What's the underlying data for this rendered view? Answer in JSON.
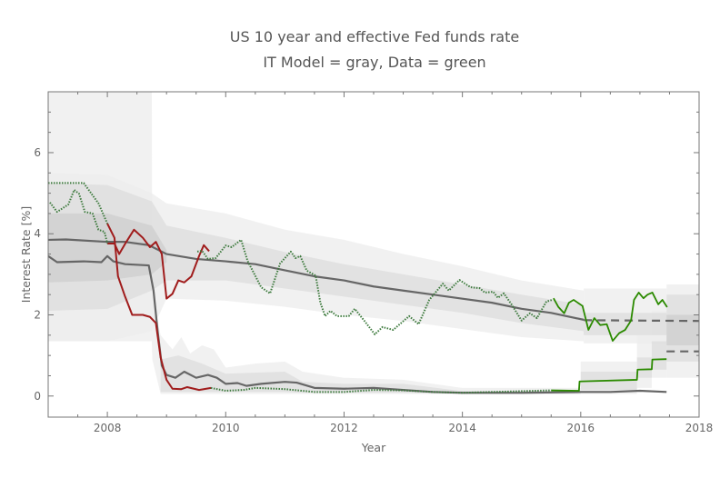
{
  "chart_data": {
    "type": "line",
    "title": "US 10 year and effective Fed funds rate",
    "subtitle": "IT Model = gray, Data = green",
    "xlabel": "Year",
    "ylabel": "Interest Rate [%]",
    "xlim": [
      2007,
      2018
    ],
    "ylim": [
      -0.52,
      7.5
    ],
    "xticks": [
      2008,
      2010,
      2012,
      2014,
      2016,
      2018
    ],
    "yticks": [
      0,
      2,
      4,
      6
    ],
    "grid": false,
    "colors": {
      "band_outer": "#ececec",
      "band_mid": "#dcdcdc",
      "band_inner": "#cdcdcd",
      "model": "#666666",
      "red": "#a01c1c",
      "green_dotted": "#3d7a3d",
      "green": "#2b8a00"
    },
    "bands": [
      {
        "level": "outer",
        "points": [
          [
            2007,
            1.35,
            5.5
          ],
          [
            2008,
            1.35,
            5.45
          ],
          [
            2008.75,
            1.6,
            5.0
          ],
          [
            2009,
            2.4,
            4.75
          ],
          [
            2010,
            2.35,
            4.5
          ],
          [
            2011,
            2.2,
            4.1
          ],
          [
            2012,
            2.0,
            3.85
          ],
          [
            2013,
            1.85,
            3.5
          ],
          [
            2014,
            1.65,
            3.2
          ],
          [
            2015,
            1.45,
            2.85
          ],
          [
            2016.05,
            1.35,
            2.6
          ]
        ]
      },
      {
        "level": "outer",
        "points": [
          [
            2007,
            1.35,
            8
          ],
          [
            2008.75,
            1.35,
            8
          ],
          [
            2008.76,
            0.9,
            2.5
          ],
          [
            2008.9,
            0.05,
            1.5
          ],
          [
            2009.1,
            0.05,
            1.15
          ],
          [
            2009.25,
            0.05,
            1.45
          ],
          [
            2009.4,
            0.05,
            1.05
          ],
          [
            2009.6,
            0.05,
            1.25
          ],
          [
            2009.8,
            0.05,
            1.15
          ],
          [
            2010,
            0.05,
            0.7
          ],
          [
            2010.5,
            0.05,
            0.8
          ],
          [
            2011,
            0.05,
            0.85
          ],
          [
            2011.3,
            0.05,
            0.6
          ],
          [
            2012,
            0.05,
            0.45
          ],
          [
            2013,
            0.05,
            0.4
          ],
          [
            2014,
            0.05,
            0.2
          ],
          [
            2016,
            0.05,
            0.2
          ]
        ]
      },
      {
        "level": "mid",
        "points": [
          [
            2007,
            2.1,
            5.25
          ],
          [
            2008,
            2.15,
            5.2
          ],
          [
            2008.75,
            2.6,
            4.8
          ],
          [
            2009,
            2.85,
            4.2
          ],
          [
            2010,
            2.85,
            3.9
          ],
          [
            2011,
            2.65,
            3.55
          ],
          [
            2012,
            2.45,
            3.25
          ],
          [
            2013,
            2.25,
            3.0
          ],
          [
            2014,
            2.05,
            2.75
          ],
          [
            2015,
            1.8,
            2.5
          ],
          [
            2016.05,
            1.6,
            2.25
          ]
        ]
      },
      {
        "level": "mid",
        "points": [
          [
            2008.9,
            0.1,
            0.9
          ],
          [
            2009.2,
            0.1,
            1.0
          ],
          [
            2009.6,
            0.1,
            0.8
          ],
          [
            2010,
            0.1,
            0.55
          ],
          [
            2011,
            0.1,
            0.6
          ],
          [
            2011.3,
            0.08,
            0.35
          ],
          [
            2012,
            0.08,
            0.3
          ],
          [
            2013,
            0.08,
            0.3
          ],
          [
            2014,
            0.05,
            0.12
          ],
          [
            2016,
            0.05,
            0.12
          ]
        ]
      },
      {
        "level": "inner",
        "points": [
          [
            2007,
            2.8,
            4.5
          ],
          [
            2008,
            2.85,
            4.5
          ],
          [
            2008.75,
            3.0,
            4.2
          ],
          [
            2009,
            3.3,
            3.6
          ]
        ]
      }
    ],
    "forecast_boxes": [
      {
        "level": "outer",
        "x": [
          2016.05,
          2017.45
        ],
        "range": [
          1.3,
          2.65
        ]
      },
      {
        "level": "mid",
        "x": [
          2016.05,
          2017.45
        ],
        "range": [
          1.5,
          2.05
        ]
      },
      {
        "level": "outer",
        "x": [
          2017.45,
          2018
        ],
        "range": [
          0.45,
          2.75
        ]
      },
      {
        "level": "mid",
        "x": [
          2017.45,
          2018
        ],
        "range": [
          0.85,
          2.5
        ]
      },
      {
        "level": "inner",
        "x": [
          2017.45,
          2018
        ],
        "range": [
          1.25,
          2.0
        ]
      },
      {
        "level": "outer",
        "x": [
          2016.0,
          2016.95
        ],
        "range": [
          0.05,
          0.85
        ]
      },
      {
        "level": "mid",
        "x": [
          2016.0,
          2016.95
        ],
        "range": [
          0.15,
          0.6
        ]
      },
      {
        "level": "outer",
        "x": [
          2016.95,
          2017.2
        ],
        "range": [
          0.2,
          1.5
        ]
      },
      {
        "level": "mid",
        "x": [
          2016.95,
          2017.2
        ],
        "range": [
          0.45,
          0.95
        ]
      },
      {
        "level": "outer",
        "x": [
          2017.2,
          2017.45
        ],
        "range": [
          0.45,
          2.1
        ]
      },
      {
        "level": "mid",
        "x": [
          2017.2,
          2017.45
        ],
        "range": [
          0.65,
          1.35
        ]
      }
    ],
    "series": [
      {
        "style": "model",
        "points": [
          [
            2007,
            3.85
          ],
          [
            2007.3,
            3.86
          ],
          [
            2008,
            3.8
          ],
          [
            2008.3,
            3.8
          ],
          [
            2008.7,
            3.72
          ],
          [
            2009,
            3.5
          ],
          [
            2009.5,
            3.38
          ],
          [
            2010,
            3.32
          ],
          [
            2010.5,
            3.25
          ],
          [
            2011,
            3.1
          ],
          [
            2011.5,
            2.95
          ],
          [
            2012,
            2.85
          ],
          [
            2012.5,
            2.7
          ],
          [
            2013,
            2.6
          ],
          [
            2013.5,
            2.5
          ],
          [
            2014,
            2.4
          ],
          [
            2014.5,
            2.3
          ],
          [
            2015,
            2.15
          ],
          [
            2015.5,
            2.05
          ],
          [
            2016.05,
            1.88
          ]
        ]
      },
      {
        "style": "model-dashed",
        "points": [
          [
            2016.05,
            1.87
          ],
          [
            2018,
            1.85
          ]
        ]
      },
      {
        "style": "model",
        "points": [
          [
            2007,
            3.45
          ],
          [
            2007.15,
            3.3
          ],
          [
            2007.6,
            3.32
          ],
          [
            2007.9,
            3.3
          ],
          [
            2008,
            3.45
          ],
          [
            2008.1,
            3.32
          ],
          [
            2008.3,
            3.25
          ],
          [
            2008.7,
            3.22
          ],
          [
            2008.78,
            2.6
          ],
          [
            2008.85,
            1.6
          ],
          [
            2008.92,
            0.75
          ],
          [
            2009,
            0.52
          ],
          [
            2009.15,
            0.45
          ],
          [
            2009.3,
            0.6
          ],
          [
            2009.5,
            0.45
          ],
          [
            2009.7,
            0.52
          ],
          [
            2009.85,
            0.45
          ],
          [
            2010,
            0.3
          ],
          [
            2010.2,
            0.32
          ],
          [
            2010.35,
            0.25
          ],
          [
            2010.6,
            0.3
          ],
          [
            2011,
            0.35
          ],
          [
            2011.2,
            0.33
          ],
          [
            2011.5,
            0.2
          ],
          [
            2012,
            0.18
          ],
          [
            2012.5,
            0.2
          ],
          [
            2013,
            0.15
          ],
          [
            2013.5,
            0.1
          ],
          [
            2014,
            0.08
          ],
          [
            2015,
            0.08
          ],
          [
            2016,
            0.1
          ],
          [
            2016.5,
            0.1
          ],
          [
            2017,
            0.13
          ],
          [
            2017.45,
            0.1
          ]
        ]
      },
      {
        "style": "model-dashed",
        "points": [
          [
            2017.45,
            1.1
          ],
          [
            2018,
            1.1
          ]
        ]
      },
      {
        "style": "red",
        "points": [
          [
            2008,
            3.76
          ],
          [
            2008.12,
            3.76
          ],
          [
            2008.2,
            3.5
          ],
          [
            2008.32,
            3.8
          ],
          [
            2008.45,
            4.1
          ],
          [
            2008.6,
            3.9
          ],
          [
            2008.72,
            3.67
          ],
          [
            2008.82,
            3.8
          ],
          [
            2008.92,
            3.5
          ],
          [
            2009.0,
            2.4
          ],
          [
            2009.1,
            2.52
          ],
          [
            2009.2,
            2.85
          ],
          [
            2009.3,
            2.8
          ],
          [
            2009.42,
            2.95
          ],
          [
            2009.55,
            3.45
          ],
          [
            2009.63,
            3.72
          ],
          [
            2009.72,
            3.57
          ]
        ]
      },
      {
        "style": "red",
        "points": [
          [
            2008,
            4.25
          ],
          [
            2008.12,
            3.9
          ],
          [
            2008.18,
            2.95
          ],
          [
            2008.3,
            2.45
          ],
          [
            2008.42,
            2.0
          ],
          [
            2008.6,
            2.0
          ],
          [
            2008.72,
            1.95
          ],
          [
            2008.82,
            1.8
          ],
          [
            2008.9,
            0.95
          ],
          [
            2009.0,
            0.4
          ],
          [
            2009.1,
            0.18
          ],
          [
            2009.25,
            0.17
          ],
          [
            2009.35,
            0.22
          ],
          [
            2009.55,
            0.15
          ],
          [
            2009.75,
            0.2
          ]
        ]
      },
      {
        "style": "green-dotted",
        "points": [
          [
            2007.03,
            4.77
          ],
          [
            2007.15,
            4.54
          ],
          [
            2007.34,
            4.72
          ],
          [
            2007.44,
            5.08
          ],
          [
            2007.52,
            4.99
          ],
          [
            2007.62,
            4.54
          ],
          [
            2007.75,
            4.5
          ],
          [
            2007.85,
            4.1
          ],
          [
            2007.95,
            4.05
          ],
          [
            2008,
            3.76
          ]
        ]
      },
      {
        "style": "green-dotted",
        "points": [
          [
            2007,
            5.25
          ],
          [
            2007.6,
            5.25
          ],
          [
            2007.75,
            4.95
          ],
          [
            2007.85,
            4.75
          ],
          [
            2008,
            4.25
          ]
        ]
      },
      {
        "style": "green-dotted",
        "points": [
          [
            2009.52,
            3.56
          ],
          [
            2009.6,
            3.58
          ],
          [
            2009.7,
            3.38
          ],
          [
            2009.83,
            3.4
          ],
          [
            2010,
            3.71
          ],
          [
            2010.1,
            3.67
          ],
          [
            2010.26,
            3.85
          ],
          [
            2010.37,
            3.33
          ],
          [
            2010.6,
            2.68
          ],
          [
            2010.75,
            2.53
          ],
          [
            2010.92,
            3.27
          ],
          [
            2011.1,
            3.56
          ],
          [
            2011.18,
            3.4
          ],
          [
            2011.26,
            3.45
          ],
          [
            2011.37,
            3.09
          ],
          [
            2011.52,
            2.97
          ],
          [
            2011.6,
            2.3
          ],
          [
            2011.68,
            1.97
          ],
          [
            2011.77,
            2.1
          ],
          [
            2011.88,
            1.97
          ],
          [
            2012.08,
            1.97
          ],
          [
            2012.18,
            2.15
          ],
          [
            2012.34,
            1.86
          ],
          [
            2012.52,
            1.52
          ],
          [
            2012.65,
            1.7
          ],
          [
            2012.83,
            1.63
          ],
          [
            2013.1,
            1.97
          ],
          [
            2013.26,
            1.77
          ],
          [
            2013.44,
            2.37
          ],
          [
            2013.67,
            2.77
          ],
          [
            2013.77,
            2.6
          ],
          [
            2013.95,
            2.86
          ],
          [
            2014.14,
            2.68
          ],
          [
            2014.29,
            2.66
          ],
          [
            2014.38,
            2.55
          ],
          [
            2014.52,
            2.57
          ],
          [
            2014.6,
            2.42
          ],
          [
            2014.7,
            2.53
          ],
          [
            2014.83,
            2.26
          ],
          [
            2015.0,
            1.86
          ],
          [
            2015.14,
            2.04
          ],
          [
            2015.26,
            1.92
          ],
          [
            2015.42,
            2.33
          ],
          [
            2015.52,
            2.37
          ]
        ]
      },
      {
        "style": "green-dotted",
        "points": [
          [
            2009.75,
            0.2
          ],
          [
            2010,
            0.13
          ],
          [
            2010.3,
            0.15
          ],
          [
            2010.5,
            0.2
          ],
          [
            2011,
            0.17
          ],
          [
            2011.5,
            0.1
          ],
          [
            2012,
            0.1
          ],
          [
            2012.5,
            0.15
          ],
          [
            2013,
            0.14
          ],
          [
            2013.5,
            0.1
          ],
          [
            2014,
            0.08
          ],
          [
            2015,
            0.12
          ],
          [
            2015.5,
            0.14
          ]
        ]
      },
      {
        "style": "green",
        "points": [
          [
            2015.54,
            2.41
          ],
          [
            2015.62,
            2.2
          ],
          [
            2015.72,
            2.04
          ],
          [
            2015.8,
            2.3
          ],
          [
            2015.88,
            2.37
          ],
          [
            2016.03,
            2.22
          ],
          [
            2016.13,
            1.63
          ],
          [
            2016.23,
            1.92
          ],
          [
            2016.33,
            1.75
          ],
          [
            2016.44,
            1.77
          ],
          [
            2016.54,
            1.36
          ],
          [
            2016.65,
            1.55
          ],
          [
            2016.75,
            1.63
          ],
          [
            2016.85,
            1.86
          ],
          [
            2016.9,
            2.37
          ],
          [
            2016.98,
            2.55
          ],
          [
            2017.06,
            2.41
          ],
          [
            2017.13,
            2.5
          ],
          [
            2017.21,
            2.55
          ],
          [
            2017.31,
            2.26
          ],
          [
            2017.38,
            2.37
          ],
          [
            2017.46,
            2.19
          ]
        ]
      },
      {
        "style": "green",
        "points": [
          [
            2015.5,
            0.14
          ],
          [
            2015.97,
            0.13
          ],
          [
            2015.98,
            0.36
          ],
          [
            2016.95,
            0.4
          ],
          [
            2016.96,
            0.65
          ],
          [
            2017.2,
            0.66
          ],
          [
            2017.21,
            0.9
          ],
          [
            2017.45,
            0.91
          ]
        ]
      }
    ]
  }
}
